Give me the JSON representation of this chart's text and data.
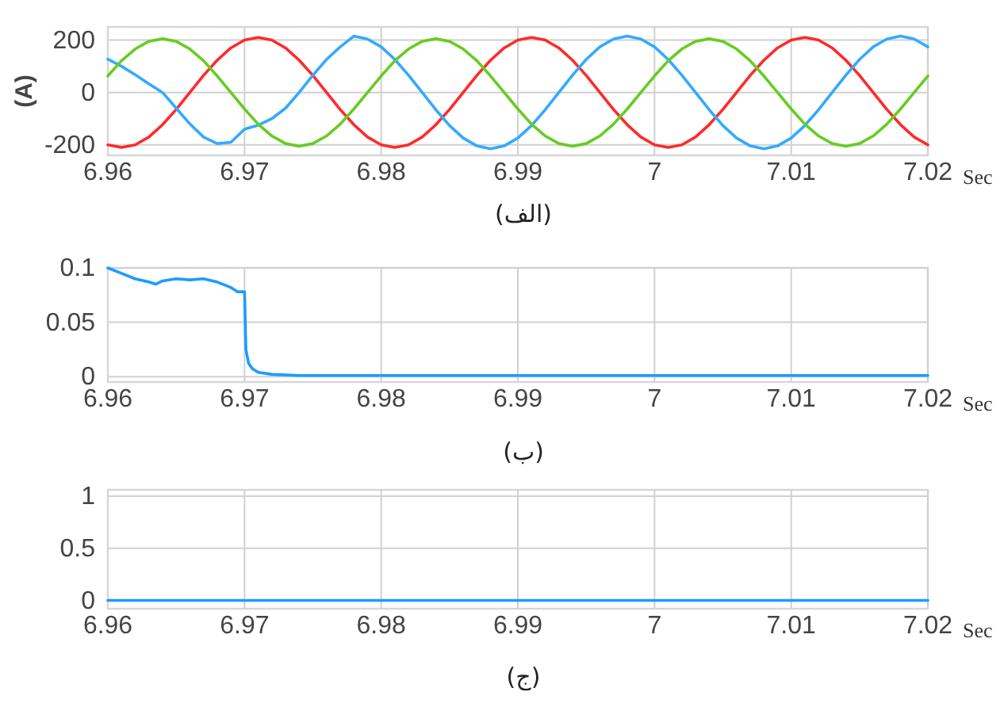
{
  "chart_data": [
    {
      "type": "line",
      "ylabel": "(A)",
      "xlabel": "Sec",
      "annotations": [
        "(الف)"
      ],
      "xlim": [
        6.96,
        7.02
      ],
      "xticks": [
        6.96,
        6.97,
        6.98,
        6.99,
        7,
        7.01,
        7.02
      ],
      "ylim": [
        -240,
        250
      ],
      "yticks": [
        -200,
        0,
        200
      ],
      "grid": true,
      "marker": "none",
      "line_style": "solid",
      "x": [
        6.96,
        6.961,
        6.962,
        6.963,
        6.964,
        6.965,
        6.966,
        6.967,
        6.968,
        6.969,
        6.97,
        6.971,
        6.972,
        6.973,
        6.974,
        6.975,
        6.976,
        6.977,
        6.978,
        6.979,
        6.98,
        6.981,
        6.982,
        6.983,
        6.984,
        6.985,
        6.986,
        6.987,
        6.988,
        6.989,
        6.99,
        6.991,
        6.992,
        6.993,
        6.994,
        6.995,
        6.996,
        6.997,
        6.998,
        6.999,
        7,
        7.001,
        7.002,
        7.003,
        7.004,
        7.005,
        7.006,
        7.007,
        7.008,
        7.009,
        7.01,
        7.011,
        7.012,
        7.013,
        7.014,
        7.015,
        7.016,
        7.017,
        7.018,
        7.019,
        7.02
      ],
      "series": [
        {
          "color": "#ff2a2a",
          "values": [
            -200,
            -210,
            -200,
            -170,
            -123,
            -65,
            0,
            65,
            123,
            170,
            200,
            210,
            200,
            170,
            123,
            65,
            0,
            -65,
            -123,
            -170,
            -200,
            -210,
            -200,
            -170,
            -123,
            -65,
            0,
            65,
            123,
            170,
            200,
            210,
            200,
            170,
            123,
            65,
            0,
            -65,
            -123,
            -170,
            -200,
            -210,
            -200,
            -170,
            -123,
            -65,
            0,
            65,
            123,
            170,
            200,
            210,
            200,
            170,
            123,
            65,
            0,
            -65,
            -123,
            -170,
            -200
          ]
        },
        {
          "color": "#33aaff",
          "values": [
            127,
            100,
            68,
            33,
            0,
            -60,
            -120,
            -170,
            -195,
            -190,
            -140,
            -125,
            -100,
            -60,
            0,
            66,
            126,
            174,
            215,
            204,
            174,
            126,
            66,
            0,
            -66,
            -126,
            -174,
            -204,
            -215,
            -204,
            -174,
            -126,
            -66,
            0,
            66,
            126,
            174,
            204,
            215,
            204,
            174,
            126,
            66,
            0,
            -66,
            -126,
            -174,
            -204,
            -215,
            -204,
            -174,
            -126,
            -66,
            0,
            66,
            126,
            174,
            204,
            215,
            204,
            174
          ]
        },
        {
          "color": "#66cc22",
          "values": [
            63,
            121,
            166,
            195,
            205,
            195,
            166,
            121,
            63,
            0,
            -63,
            -121,
            -166,
            -195,
            -205,
            -195,
            -166,
            -121,
            -63,
            0,
            63,
            121,
            166,
            195,
            205,
            195,
            166,
            121,
            63,
            0,
            -63,
            -121,
            -166,
            -195,
            -205,
            -195,
            -166,
            -121,
            -63,
            0,
            63,
            121,
            166,
            195,
            205,
            195,
            166,
            121,
            63,
            0,
            -63,
            -121,
            -166,
            -195,
            -205,
            -195,
            -166,
            -121,
            -63,
            0,
            63
          ]
        }
      ]
    },
    {
      "type": "line",
      "xlabel": "Sec",
      "annotations": [
        "(ب)"
      ],
      "xlim": [
        6.96,
        7.02
      ],
      "xticks": [
        6.96,
        6.97,
        6.98,
        6.99,
        7,
        7.01,
        7.02
      ],
      "ylim": [
        -0.005,
        0.1
      ],
      "yticks": [
        0,
        0.05,
        0.1
      ],
      "grid": true,
      "marker": "none",
      "line_style": "solid",
      "series": [
        {
          "color": "#1e9bff",
          "x": [
            6.96,
            6.961,
            6.962,
            6.963,
            6.9635,
            6.964,
            6.965,
            6.966,
            6.967,
            6.968,
            6.969,
            6.9695,
            6.97,
            6.9701,
            6.9703,
            6.9706,
            6.971,
            6.972,
            6.974,
            6.98,
            6.99,
            7,
            7.01,
            7.02
          ],
          "values": [
            0.1,
            0.095,
            0.09,
            0.087,
            0.085,
            0.088,
            0.09,
            0.089,
            0.09,
            0.087,
            0.082,
            0.078,
            0.078,
            0.025,
            0.012,
            0.007,
            0.004,
            0.002,
            0.001,
            0.001,
            0.001,
            0.001,
            0.001,
            0.001
          ]
        }
      ]
    },
    {
      "type": "line",
      "xlabel": "Sec",
      "annotations": [
        "(ج)"
      ],
      "xlim": [
        6.96,
        7.02
      ],
      "xticks": [
        6.96,
        6.97,
        6.98,
        6.99,
        7,
        7.01,
        7.02
      ],
      "ylim": [
        -0.08,
        1.06
      ],
      "yticks": [
        0,
        0.5,
        1
      ],
      "grid": true,
      "marker": "none",
      "line_style": "solid",
      "series": [
        {
          "color": "#1e9bff",
          "x": [
            6.96,
            7.02
          ],
          "values": [
            0,
            0
          ]
        }
      ]
    }
  ]
}
